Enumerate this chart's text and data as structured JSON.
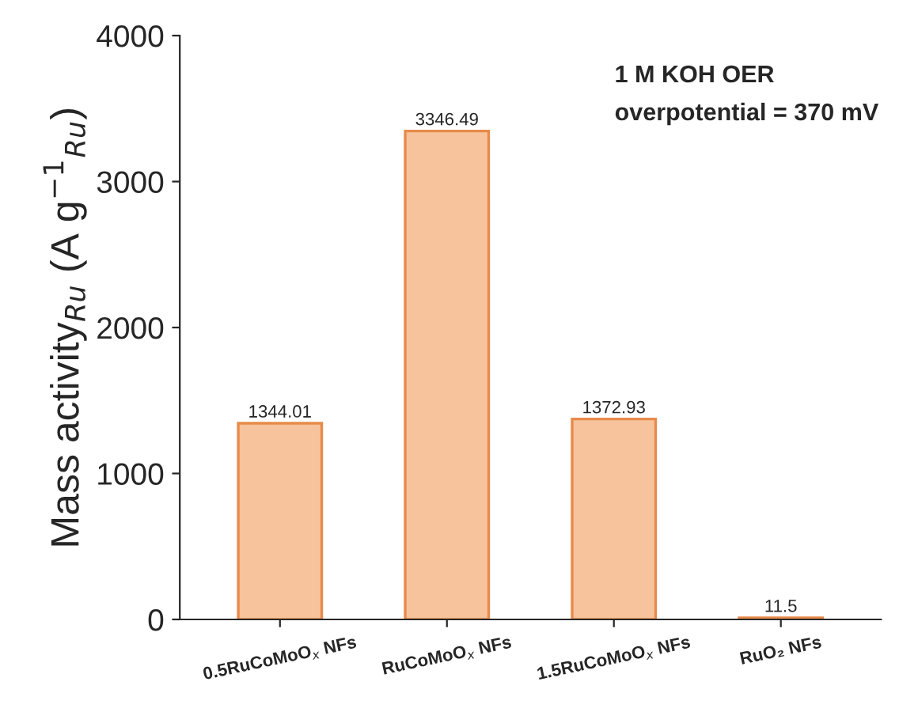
{
  "chart_data": {
    "type": "bar",
    "categories": [
      "0.5RuCoMoO$_{x}$ NFs",
      "RuCoMoO$_{x}$ NFs",
      "1.5RuCoMoO$_{x}$ NFs",
      "RuO₂ NFs"
    ],
    "values": [
      1344.01,
      3346.49,
      1372.93,
      11.5
    ],
    "color": "#f6c39c",
    "ylabel": "Mass activity$_{Ru}$ (A g$^{−1}$$_{Ru}$)",
    "annotations": [
      "1 M KOH OER",
      "overpotential = 370 mV"
    ],
    "ylim": [
      0,
      4000
    ],
    "yticks": [
      0,
      1000,
      2000,
      3000,
      4000
    ],
    "data_labels": true,
    "grid": false,
    "legend": false
  }
}
